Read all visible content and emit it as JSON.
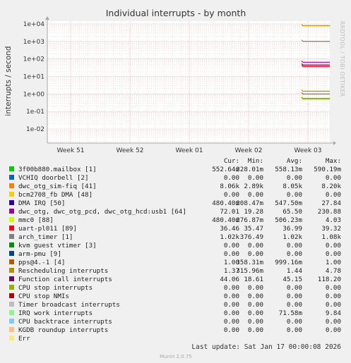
{
  "chart_data": {
    "type": "line",
    "title": "Individual interrupts - by month",
    "ylabel": "interrupts / second",
    "yscale": "log",
    "ylim": [
      0.003,
      30000
    ],
    "yticks": [
      "1e-02",
      "1e-01",
      "1e+00",
      "1e+01",
      "1e+02",
      "1e+03",
      "1e+04"
    ],
    "xticks": [
      "Week 51",
      "Week 52",
      "Week 01",
      "Week 02",
      "Week 03"
    ],
    "grid": true,
    "side_text": "RRDTOOL / TOBI OETIKER",
    "columns": [
      "Cur:",
      "Min:",
      "Avg:",
      "Max:"
    ],
    "series": [
      {
        "name": "3f00b880.mailbox [1]",
        "color": "#00cc00",
        "cur": "552.64m",
        "min": "228.01m",
        "avg": "558.13m",
        "max": "590.19m",
        "level": 0.55
      },
      {
        "name": "VCHIQ doorbell [2]",
        "color": "#0066b3",
        "cur": "0.00",
        "min": "0.00",
        "avg": "0.00",
        "max": "0.00"
      },
      {
        "name": "dwc_otg_sim-fiq [41]",
        "color": "#ff8000",
        "cur": "8.06k",
        "min": "2.89k",
        "avg": "8.05k",
        "max": "8.20k",
        "level": 8050
      },
      {
        "name": "bcm2708_fb DMA [48]",
        "color": "#ffcc00",
        "cur": "0.00",
        "min": "0.00",
        "avg": "0.00",
        "max": "0.00"
      },
      {
        "name": "DMA IRQ [50]",
        "color": "#330099",
        "cur": "480.40m",
        "min": "208.47m",
        "avg": "547.50m",
        "max": "27.84",
        "level": 0.5
      },
      {
        "name": "dwc_otg, dwc_otg_pcd, dwc_otg_hcd:usb1 [64]",
        "color": "#990099",
        "cur": "72.01",
        "min": "19.28",
        "avg": "65.50",
        "max": "230.88",
        "level": 65
      },
      {
        "name": "mmc0 [88]",
        "color": "#ccff00",
        "cur": "480.40m",
        "min": "276.87m",
        "avg": "506.23m",
        "max": "4.03",
        "level": 0.5
      },
      {
        "name": "uart-pl011 [89]",
        "color": "#ff0000",
        "cur": "36.46",
        "min": "35.47",
        "avg": "36.99",
        "max": "39.32",
        "level": 37
      },
      {
        "name": "arch_timer [1]",
        "color": "#808080",
        "cur": "1.02k",
        "min": "376.49",
        "avg": "1.02k",
        "max": "1.08k",
        "level": 1020
      },
      {
        "name": "kvm guest vtimer [3]",
        "color": "#008f00",
        "cur": "0.00",
        "min": "0.00",
        "avg": "0.00",
        "max": "0.00"
      },
      {
        "name": "arm-pmu [9]",
        "color": "#00487d",
        "cur": "0.00",
        "min": "0.00",
        "avg": "0.00",
        "max": "0.00"
      },
      {
        "name": "pps@4.-1 [4]",
        "color": "#b35a00",
        "cur": "1.00",
        "min": "358.31m",
        "avg": "999.16m",
        "max": "1.00",
        "level": 1.0
      },
      {
        "name": "Rescheduling interrupts",
        "color": "#b38f00",
        "cur": "1.37",
        "min": "315.96m",
        "avg": "1.44",
        "max": "4.78",
        "level": 1.44
      },
      {
        "name": "Function call interrupts",
        "color": "#6b006b",
        "cur": "44.06",
        "min": "18.61",
        "avg": "45.15",
        "max": "118.20",
        "level": 45
      },
      {
        "name": "CPU stop interrupts",
        "color": "#8fb300",
        "cur": "0.00",
        "min": "0.00",
        "avg": "0.00",
        "max": "0.00"
      },
      {
        "name": "CPU stop NMIs",
        "color": "#b30000",
        "cur": "0.00",
        "min": "0.00",
        "avg": "0.00",
        "max": "0.00"
      },
      {
        "name": "Timer broadcast interrupts",
        "color": "#bebebe",
        "cur": "0.00",
        "min": "0.00",
        "avg": "0.00",
        "max": "0.00"
      },
      {
        "name": "IRQ work interrupts",
        "color": "#80ff80",
        "cur": "0.00",
        "min": "0.00",
        "avg": "71.58m",
        "max": "9.84"
      },
      {
        "name": "CPU backtrace interrupts",
        "color": "#80c9ff",
        "cur": "0.00",
        "min": "0.00",
        "avg": "0.00",
        "max": "0.00"
      },
      {
        "name": "KGDB roundup interrupts",
        "color": "#ffc080",
        "cur": "0.00",
        "min": "0.00",
        "avg": "0.00",
        "max": "0.00"
      },
      {
        "name": "Err",
        "color": "#ffe680",
        "cur": "",
        "min": "",
        "avg": "",
        "max": ""
      }
    ]
  },
  "footer": {
    "last_update": "Last update: Sat Jan 17 00:00:08 2026",
    "version": "Munin 2.0.75"
  }
}
